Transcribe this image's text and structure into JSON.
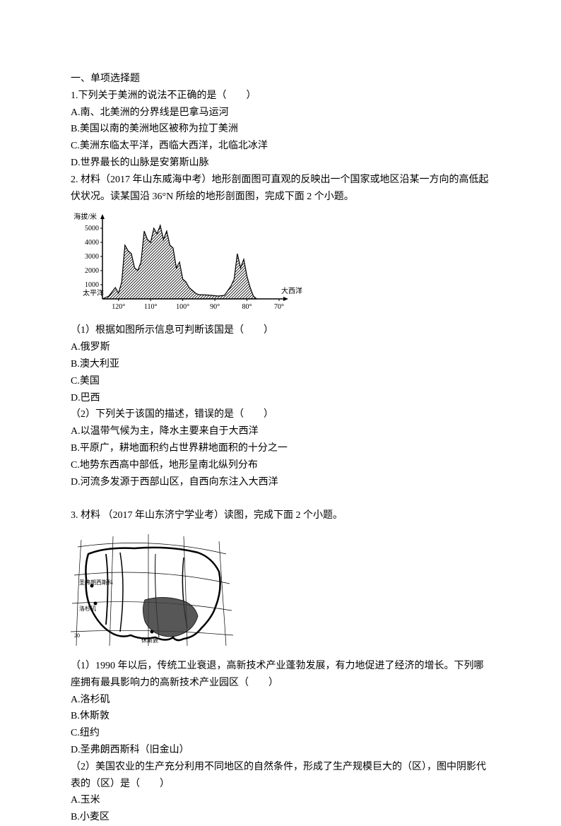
{
  "section": {
    "title": "一、单项选择题"
  },
  "q1": {
    "stem": "1.下列关于美洲的说法不正确的是（　　）",
    "optA": "A.南、北美洲的分界线是巴拿马运河",
    "optB": "B.美国以南的美洲地区被称为拉丁美洲",
    "optC": "C.美洲东临太平洋，西临大西洋，北临北冰洋",
    "optD": "D.世界最长的山脉是安第斯山脉"
  },
  "q2": {
    "material": "2. 材料（2017 年山东威海中考）地形剖面图可直观的反映出一个国家或地区沿某一方向的高低起伏状况。读某国沿 36°N 所绘的地形剖面图，完成下面 2 个小题。",
    "chart": {
      "y_label": "海拔/米",
      "y_ticks": [
        "5000",
        "4000",
        "3000",
        "2000",
        "1000"
      ],
      "y_tick_values": [
        5000,
        4000,
        3000,
        2000,
        1000
      ],
      "x_ticks": [
        "120°",
        "110°",
        "100°",
        "90°",
        "80°",
        "70°"
      ],
      "x_tick_positions": [
        120,
        110,
        100,
        90,
        80,
        70
      ],
      "left_label": "太平洋",
      "right_label": "大西洋",
      "axis_color": "#000000",
      "profile_color": "#000000",
      "background_color": "#ffffff",
      "label_fontsize": 10,
      "profile_points": [
        [
          125,
          0
        ],
        [
          123,
          200
        ],
        [
          121,
          800
        ],
        [
          120,
          400
        ],
        [
          119,
          1200
        ],
        [
          118,
          3800
        ],
        [
          117,
          3400
        ],
        [
          116,
          3200
        ],
        [
          115,
          2200
        ],
        [
          114,
          2000
        ],
        [
          113,
          2600
        ],
        [
          112,
          4800
        ],
        [
          111,
          4200
        ],
        [
          110,
          4000
        ],
        [
          109,
          5000
        ],
        [
          108,
          4600
        ],
        [
          107,
          5200
        ],
        [
          106,
          4200
        ],
        [
          105,
          4800
        ],
        [
          104,
          3800
        ],
        [
          103,
          3600
        ],
        [
          102,
          2200
        ],
        [
          101,
          2600
        ],
        [
          100,
          1400
        ],
        [
          99,
          1200
        ],
        [
          98,
          800
        ],
        [
          97,
          600
        ],
        [
          96,
          400
        ],
        [
          95,
          300
        ],
        [
          93,
          280
        ],
        [
          91,
          250
        ],
        [
          89,
          200
        ],
        [
          87,
          250
        ],
        [
          85,
          900
        ],
        [
          84,
          1400
        ],
        [
          83,
          3200
        ],
        [
          82,
          2200
        ],
        [
          81,
          2800
        ],
        [
          80,
          1600
        ],
        [
          79,
          800
        ],
        [
          78,
          200
        ],
        [
          77,
          0
        ]
      ]
    },
    "sub1": {
      "stem": "（1）根据如图所示信息可判断该国是（　　）",
      "optA": "A.俄罗斯",
      "optB": "B.澳大利亚",
      "optC": "C.美国",
      "optD": "D.巴西"
    },
    "sub2": {
      "stem": "（2）下列关于该国的描述，错误的是（　　）",
      "optA": "A.以温带气候为主，降水主要来自于大西洋",
      "optB": "B.平原广，耕地面积约占世界耕地面积的十分之一",
      "optC": "C.地势东西高中部低，地形呈南北纵列分布",
      "optD": "D.河流多发源于西部山区，自西向东注入大西洋"
    }
  },
  "q3": {
    "material": "3. 材料 （2017 年山东济宁学业考）读图，完成下面 2 个小题。",
    "map": {
      "outline_color": "#000000",
      "shade_color": "#3a3a3a",
      "background_color": "#ffffff",
      "grid_color": "#000000",
      "label_fontsize": 8,
      "city_labels": [
        "圣弗朗西斯科",
        "洛杉矶",
        "休斯敦"
      ]
    },
    "sub1": {
      "stem": "（1）1990 年以后，传统工业衰退，高新技术产业蓬勃发展，有力地促进了经济的增长。下列哪座拥有最具影响力的高新技术产业园区（　　）",
      "optA": "A.洛杉矶",
      "optB": "B.休斯敦",
      "optC": "C.纽约",
      "optD": "D.圣弗朗西斯科（旧金山）"
    },
    "sub2": {
      "stem": "（2）美国农业的生产充分利用不同地区的自然条件，形成了生产规模巨大的（区），图中阴影代表的（区）是（　　）",
      "optA": "A.玉米",
      "optB": "B.小麦区"
    }
  }
}
